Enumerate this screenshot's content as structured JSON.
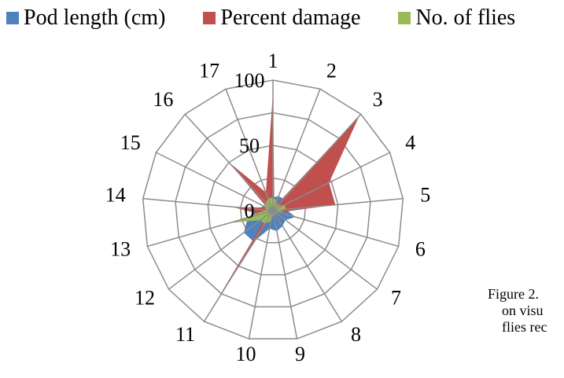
{
  "chart_data": {
    "type": "radar",
    "categories": [
      "1",
      "2",
      "3",
      "4",
      "5",
      "6",
      "7",
      "8",
      "9",
      "10",
      "11",
      "12",
      "13",
      "14",
      "15",
      "16",
      "17"
    ],
    "series": [
      {
        "name": "Pod length (cm)",
        "color": "#4f81bd",
        "values": [
          10,
          12,
          12,
          10,
          10,
          18,
          12,
          14,
          16,
          14,
          28,
          28,
          20,
          12,
          8,
          8,
          8
        ]
      },
      {
        "name": "Percent damage",
        "color": "#c0504d",
        "values": [
          90,
          3,
          98,
          48,
          48,
          5,
          3,
          3,
          3,
          3,
          100,
          5,
          10,
          32,
          5,
          50,
          15
        ]
      },
      {
        "name": "No. of flies",
        "color": "#9bbb59",
        "values": [
          10,
          8,
          5,
          10,
          10,
          5,
          3,
          3,
          3,
          8,
          12,
          12,
          35,
          5,
          8,
          8,
          10
        ]
      }
    ],
    "radial_ticks": [
      0,
      50,
      100
    ],
    "rlim": [
      0,
      100
    ],
    "grid": true,
    "legend_position": "top"
  },
  "caption": {
    "line1": "Figure 2.",
    "line2": "on visu",
    "line3": "flies rec"
  }
}
